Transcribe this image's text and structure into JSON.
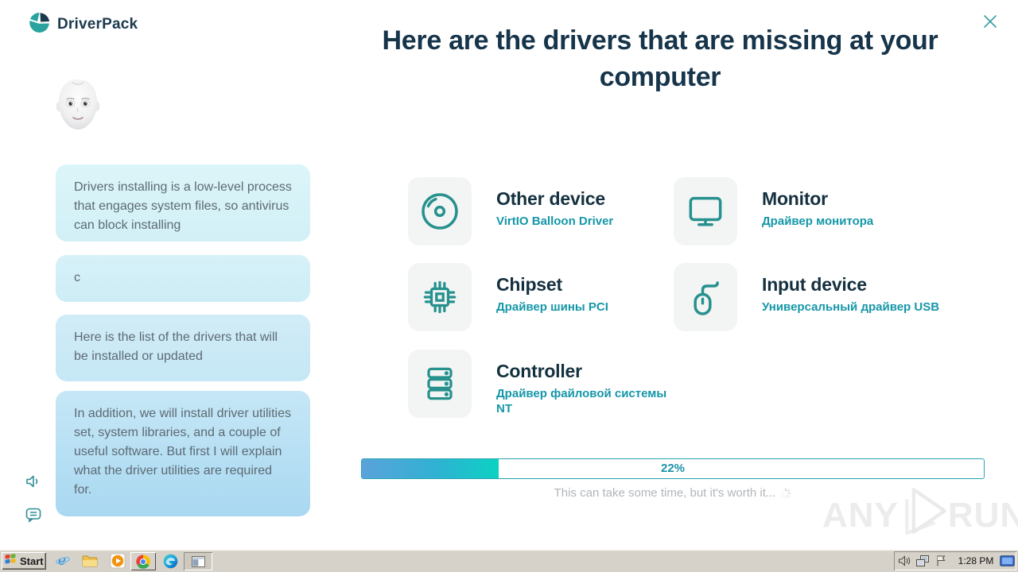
{
  "app": {
    "brand": "DriverPack",
    "title": "Here are the drivers that are missing at your computer"
  },
  "assistant": {
    "messages": [
      "Drivers installing is a low-level process that engages system files, so antivirus can block installing",
      "c",
      "Here is the list of the drivers that will be installed or updated",
      "In addition, we will install driver utilities set, system libraries, and a couple of useful software. But first I will explain what the driver utilities are required for."
    ]
  },
  "drivers": [
    {
      "name": "Other device",
      "subtitle": "VirtIO Balloon Driver",
      "icon": "disc-icon"
    },
    {
      "name": "Monitor",
      "subtitle": "Драйвер монитора",
      "icon": "monitor-icon"
    },
    {
      "name": "Chipset",
      "subtitle": "Драйвер шины PCI",
      "icon": "chipset-icon"
    },
    {
      "name": "Input device",
      "subtitle": "Универсальный драйвер USB",
      "icon": "mouse-icon"
    },
    {
      "name": "Controller",
      "subtitle": "Драйвер файловой системы NT",
      "icon": "server-stack-icon"
    }
  ],
  "progress": {
    "percent": 22,
    "label": "22%",
    "note": "This can take some time, but it's worth it..."
  },
  "watermark": {
    "left": "ANY",
    "right": "RUN"
  },
  "taskbar": {
    "start_label": "Start",
    "clock": "1:28 PM",
    "quick_launch": [
      "internet-explorer",
      "folder",
      "media-player",
      "chrome",
      "edge"
    ],
    "tray_icons": [
      "volume",
      "network",
      "flag",
      "display"
    ]
  },
  "colors": {
    "accent_teal": "#1597a8",
    "icon_teal": "#27918e",
    "title_navy": "#16344a",
    "progress_gradient": [
      "#5aa2da",
      "#0bd2c2"
    ],
    "bubble_light": "#dcf5f9",
    "bubble_blue": "#a9d8f1",
    "taskbar_gray": "#d6d2c9"
  }
}
